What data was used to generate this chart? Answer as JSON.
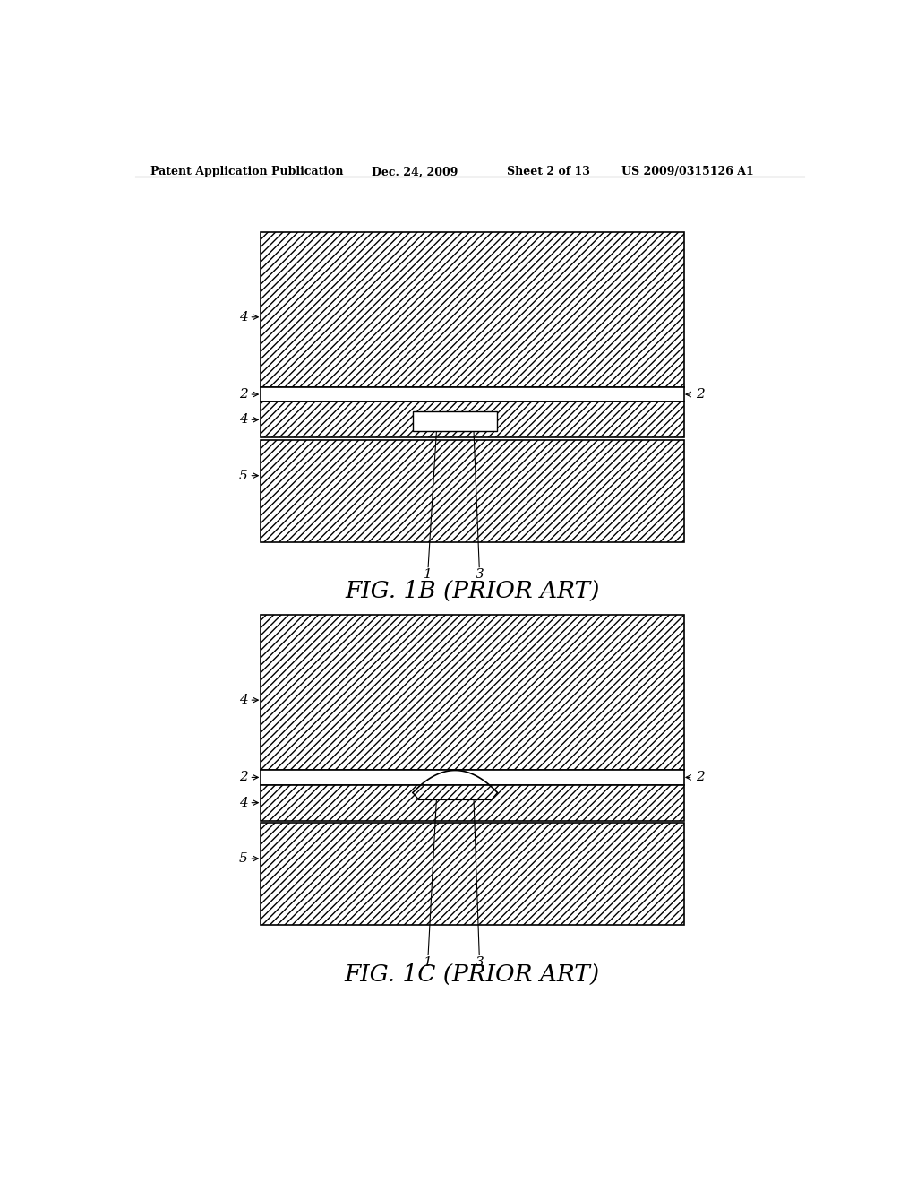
{
  "bg_color": "#ffffff",
  "header_text": "Patent Application Publication",
  "header_date": "Dec. 24, 2009",
  "header_sheet": "Sheet 2 of 13",
  "header_patent": "US 2009/0315126 A1",
  "fig1b_caption": "FIG. 1B (PRIOR ART)",
  "fig1c_caption": "FIG. 1C (PRIOR ART)",
  "line_color": "#000000",
  "label_color": "#000000"
}
